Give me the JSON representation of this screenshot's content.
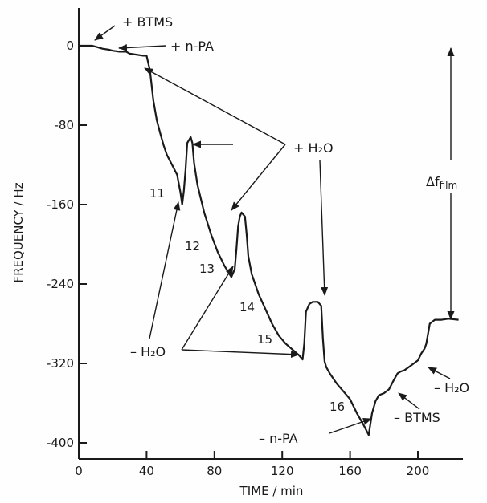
{
  "chart_data": {
    "type": "line",
    "xlabel": "TIME / min",
    "ylabel": "FREQUENCY / Hz",
    "xlim": [
      0,
      240
    ],
    "ylim": [
      -420,
      40
    ],
    "x_ticks": [
      0,
      40,
      80,
      120,
      160,
      200
    ],
    "y_ticks": [
      0,
      -80,
      -160,
      -240,
      -320,
      -400
    ],
    "x_tick_labels": [
      "0",
      "40",
      "80",
      "120",
      "160",
      "200"
    ],
    "y_tick_labels": [
      "0",
      "-80",
      "-160",
      "-240",
      "-320",
      "-400"
    ],
    "grid": false,
    "series": [
      {
        "x": [
          0,
          8,
          10,
          14,
          18,
          20,
          24,
          28,
          30,
          34,
          38,
          40,
          42,
          44,
          46,
          48,
          50,
          52,
          55,
          58,
          60,
          61,
          62,
          63,
          64,
          66,
          67,
          68,
          70,
          74,
          78,
          82,
          86,
          90,
          92,
          93,
          94,
          95,
          96,
          98,
          99,
          100,
          102,
          106,
          110,
          114,
          118,
          122,
          126,
          130,
          132,
          133,
          134,
          136,
          138,
          141,
          143,
          144,
          145,
          146,
          148,
          152,
          156,
          160,
          164,
          168,
          171,
          173,
          175,
          177,
          180,
          183,
          186,
          188,
          190,
          192,
          196,
          200,
          202,
          204,
          205,
          207,
          210,
          214,
          218,
          224
        ],
        "y": [
          0,
          0,
          -1,
          -3,
          -4,
          -5,
          -6,
          -6,
          -8,
          -9,
          -10,
          -10,
          -25,
          -55,
          -75,
          -88,
          -100,
          -110,
          -120,
          -130,
          -148,
          -160,
          -146,
          -125,
          -98,
          -92,
          -98,
          -118,
          -140,
          -168,
          -190,
          -208,
          -222,
          -233,
          -225,
          -205,
          -182,
          -172,
          -168,
          -172,
          -190,
          -212,
          -230,
          -250,
          -265,
          -280,
          -292,
          -300,
          -306,
          -312,
          -316,
          -300,
          -268,
          -260,
          -258,
          -258,
          -262,
          -295,
          -318,
          -324,
          -330,
          -340,
          -348,
          -356,
          -370,
          -382,
          -392,
          -370,
          -358,
          -352,
          -350,
          -346,
          -336,
          -330,
          -328,
          -327,
          -322,
          -317,
          -310,
          -305,
          -300,
          -280,
          -276,
          -276,
          -275,
          -276
        ]
      }
    ],
    "annotations": {
      "btms_add": "+ BTMS",
      "npa_add": "+ n-PA",
      "h2o_add": "+ H₂O",
      "h2o_remove": "– H₂O",
      "npa_remove": "– n-PA",
      "btms_remove": "– BTMS",
      "h2o_remove_right": "– H₂O",
      "delta_f": "Δf",
      "delta_f_sub": "film",
      "segment_numbers": [
        "11",
        "12",
        "13",
        "14",
        "15",
        "16"
      ]
    }
  }
}
